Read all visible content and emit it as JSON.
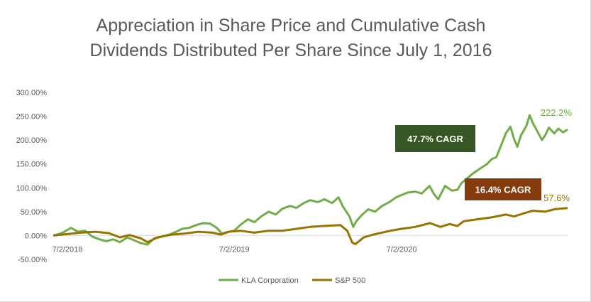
{
  "chart_data": {
    "type": "line",
    "title_lines": [
      "Appreciation in Share Price and Cumulative Cash",
      "Dividends Distributed Per Share Since July 1, 2016"
    ],
    "xlabel": "",
    "ylabel": "",
    "ylim": [
      -50,
      300
    ],
    "yticks": [
      300,
      250,
      200,
      150,
      100,
      50,
      0,
      -50
    ],
    "ytick_labels": [
      "300.00%",
      "250.00%",
      "200.00%",
      "150.00%",
      "100.00%",
      "50.00%",
      "0.00%",
      "-50.00%"
    ],
    "xlim": [
      "2018-06-01",
      "2021-06-30"
    ],
    "xticks": [
      "2018-07-02",
      "2019-07-02",
      "2020-07-02"
    ],
    "xtick_labels": [
      "7/2/2018",
      "7/2/2019",
      "7/2/2020"
    ],
    "grid": false,
    "legend_position": "bottom",
    "series": [
      {
        "name": "KLA Corporation",
        "color": "#70ad47",
        "end_label": "222.2%",
        "cagr_label": "47.7% CAGR",
        "cagr_box_color": "#375623",
        "points": [
          [
            "2018-06-01",
            0
          ],
          [
            "2018-06-20",
            5
          ],
          [
            "2018-07-10",
            16
          ],
          [
            "2018-07-25",
            8
          ],
          [
            "2018-08-10",
            10
          ],
          [
            "2018-08-25",
            -2
          ],
          [
            "2018-09-10",
            -8
          ],
          [
            "2018-09-25",
            -12
          ],
          [
            "2018-10-10",
            -8
          ],
          [
            "2018-10-25",
            -14
          ],
          [
            "2018-11-10",
            -4
          ],
          [
            "2018-11-25",
            -10
          ],
          [
            "2018-12-10",
            -16
          ],
          [
            "2018-12-24",
            -19
          ],
          [
            "2019-01-08",
            -6
          ],
          [
            "2019-01-25",
            -2
          ],
          [
            "2019-02-10",
            2
          ],
          [
            "2019-02-25",
            8
          ],
          [
            "2019-03-10",
            14
          ],
          [
            "2019-03-25",
            16
          ],
          [
            "2019-04-10",
            22
          ],
          [
            "2019-04-25",
            26
          ],
          [
            "2019-05-10",
            25
          ],
          [
            "2019-05-25",
            16
          ],
          [
            "2019-06-05",
            4
          ],
          [
            "2019-06-20",
            8
          ],
          [
            "2019-07-02",
            10
          ],
          [
            "2019-07-15",
            22
          ],
          [
            "2019-08-01",
            34
          ],
          [
            "2019-08-15",
            28
          ],
          [
            "2019-08-30",
            40
          ],
          [
            "2019-09-15",
            50
          ],
          [
            "2019-10-01",
            44
          ],
          [
            "2019-10-15",
            56
          ],
          [
            "2019-11-01",
            62
          ],
          [
            "2019-11-15",
            58
          ],
          [
            "2019-12-01",
            68
          ],
          [
            "2019-12-15",
            74
          ],
          [
            "2020-01-01",
            70
          ],
          [
            "2020-01-15",
            76
          ],
          [
            "2020-02-01",
            68
          ],
          [
            "2020-02-15",
            80
          ],
          [
            "2020-02-25",
            60
          ],
          [
            "2020-03-10",
            40
          ],
          [
            "2020-03-18",
            18
          ],
          [
            "2020-03-25",
            30
          ],
          [
            "2020-04-05",
            42
          ],
          [
            "2020-04-20",
            55
          ],
          [
            "2020-05-05",
            50
          ],
          [
            "2020-05-20",
            62
          ],
          [
            "2020-06-05",
            70
          ],
          [
            "2020-06-20",
            80
          ],
          [
            "2020-07-02",
            85
          ],
          [
            "2020-07-15",
            90
          ],
          [
            "2020-08-01",
            92
          ],
          [
            "2020-08-15",
            88
          ],
          [
            "2020-09-01",
            104
          ],
          [
            "2020-09-10",
            88
          ],
          [
            "2020-09-20",
            76
          ],
          [
            "2020-10-05",
            104
          ],
          [
            "2020-10-20",
            94
          ],
          [
            "2020-11-01",
            96
          ],
          [
            "2020-11-10",
            110
          ],
          [
            "2020-11-25",
            122
          ],
          [
            "2020-12-05",
            130
          ],
          [
            "2020-12-20",
            140
          ],
          [
            "2021-01-05",
            150
          ],
          [
            "2021-01-15",
            160
          ],
          [
            "2021-01-25",
            164
          ],
          [
            "2021-02-05",
            190
          ],
          [
            "2021-02-15",
            214
          ],
          [
            "2021-02-25",
            228
          ],
          [
            "2021-03-05",
            202
          ],
          [
            "2021-03-12",
            186
          ],
          [
            "2021-03-20",
            210
          ],
          [
            "2021-04-01",
            230
          ],
          [
            "2021-04-08",
            252
          ],
          [
            "2021-04-15",
            236
          ],
          [
            "2021-04-25",
            218
          ],
          [
            "2021-05-05",
            200
          ],
          [
            "2021-05-12",
            210
          ],
          [
            "2021-05-20",
            226
          ],
          [
            "2021-06-01",
            214
          ],
          [
            "2021-06-10",
            224
          ],
          [
            "2021-06-20",
            216
          ],
          [
            "2021-06-30",
            222.2
          ]
        ]
      },
      {
        "name": "S&P 500",
        "color": "#997300",
        "end_label": "57.6%",
        "cagr_label": "16.4% CAGR",
        "cagr_box_color": "#843c0c",
        "points": [
          [
            "2018-06-01",
            0
          ],
          [
            "2018-07-02",
            3
          ],
          [
            "2018-08-01",
            6
          ],
          [
            "2018-09-01",
            8
          ],
          [
            "2018-10-01",
            5
          ],
          [
            "2018-10-25",
            -4
          ],
          [
            "2018-11-15",
            1
          ],
          [
            "2018-12-10",
            -6
          ],
          [
            "2018-12-24",
            -14
          ],
          [
            "2019-01-15",
            -4
          ],
          [
            "2019-02-15",
            2
          ],
          [
            "2019-03-15",
            4
          ],
          [
            "2019-04-15",
            8
          ],
          [
            "2019-05-15",
            6
          ],
          [
            "2019-06-03",
            2
          ],
          [
            "2019-06-20",
            8
          ],
          [
            "2019-07-15",
            10
          ],
          [
            "2019-08-15",
            6
          ],
          [
            "2019-09-15",
            10
          ],
          [
            "2019-10-15",
            10
          ],
          [
            "2019-11-15",
            14
          ],
          [
            "2019-12-15",
            18
          ],
          [
            "2020-01-15",
            20
          ],
          [
            "2020-02-19",
            22
          ],
          [
            "2020-03-05",
            10
          ],
          [
            "2020-03-16",
            -15
          ],
          [
            "2020-03-23",
            -18
          ],
          [
            "2020-04-10",
            -4
          ],
          [
            "2020-05-01",
            2
          ],
          [
            "2020-06-08",
            10
          ],
          [
            "2020-07-02",
            14
          ],
          [
            "2020-08-01",
            18
          ],
          [
            "2020-09-02",
            26
          ],
          [
            "2020-09-25",
            18
          ],
          [
            "2020-10-15",
            24
          ],
          [
            "2020-11-01",
            20
          ],
          [
            "2020-11-15",
            30
          ],
          [
            "2020-12-15",
            34
          ],
          [
            "2021-01-15",
            38
          ],
          [
            "2021-02-15",
            44
          ],
          [
            "2021-03-05",
            40
          ],
          [
            "2021-03-25",
            46
          ],
          [
            "2021-04-15",
            52
          ],
          [
            "2021-05-12",
            50
          ],
          [
            "2021-06-01",
            55
          ],
          [
            "2021-06-30",
            57.6
          ]
        ]
      }
    ]
  }
}
